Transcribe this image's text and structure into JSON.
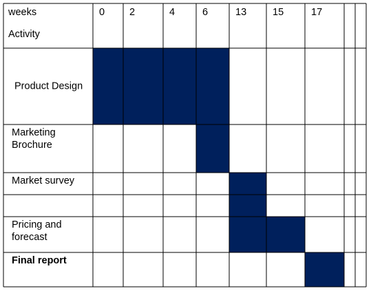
{
  "header": {
    "weeks_label": "weeks",
    "activity_label": "Activity",
    "week_columns": [
      "0",
      "2",
      "4",
      "6",
      "13",
      "15",
      "17",
      "",
      ""
    ]
  },
  "rows": [
    {
      "label_lines": [
        "Product Design"
      ],
      "bold": false,
      "filled_columns": [
        0,
        1,
        2,
        3
      ]
    },
    {
      "label_lines": [
        "Marketing",
        "Brochure"
      ],
      "bold": false,
      "filled_columns": [
        3
      ]
    },
    {
      "label_lines": [
        "Market survey"
      ],
      "bold": false,
      "filled_columns": [
        4
      ]
    },
    {
      "label_lines": [],
      "bold": false,
      "filled_columns": [
        4
      ]
    },
    {
      "label_lines": [
        "Pricing and",
        "forecast"
      ],
      "bold": false,
      "filled_columns": [
        4,
        5
      ]
    },
    {
      "label_lines": [
        "Final report"
      ],
      "bold": true,
      "filled_columns": [
        6
      ]
    }
  ],
  "colors": {
    "fill": "#00205c",
    "grid": "#000000",
    "background": "#ffffff"
  }
}
